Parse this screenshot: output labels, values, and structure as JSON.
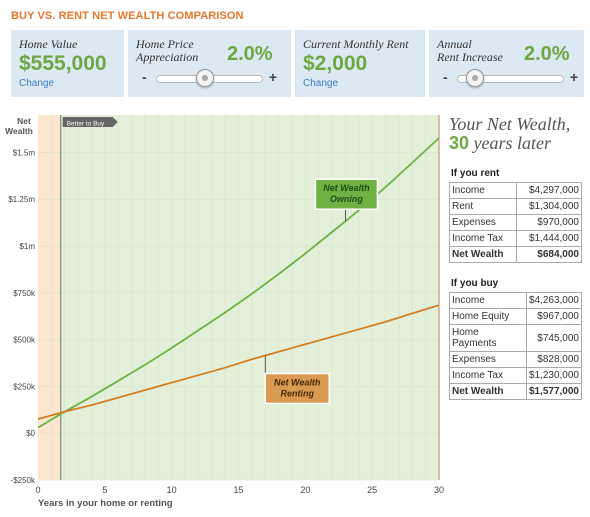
{
  "header": {
    "title": "BUY VS. RENT NET WEALTH COMPARISON"
  },
  "controls": {
    "home_value": {
      "label": "Home Value",
      "value": "$555,000",
      "change": "Change"
    },
    "home_price_appreciation": {
      "label_line1": "Home Price",
      "label_line2": "Appreciation",
      "value": "2.0%",
      "minus": "-",
      "plus": "+",
      "level": 0.45
    },
    "current_rent": {
      "label": "Current Monthly Rent",
      "value": "$2,000",
      "change": "Change"
    },
    "rent_increase": {
      "label_line1": "Annual",
      "label_line2": "Rent Increase",
      "value": "2.0%",
      "minus": "-",
      "plus": "+",
      "level": 0.16
    }
  },
  "chart_data": {
    "type": "line",
    "ylabel": [
      "Net",
      "Wealth"
    ],
    "xlabel": "Years in your home or renting",
    "xlim": [
      0,
      30
    ],
    "ylim": [
      -250000,
      1700000
    ],
    "x_ticks": [
      0,
      5,
      10,
      15,
      20,
      25,
      30
    ],
    "y_ticks": [
      {
        "value": -250000,
        "label": "-$250k"
      },
      {
        "value": 0,
        "label": "$0"
      },
      {
        "value": 250000,
        "label": "$250k"
      },
      {
        "value": 500000,
        "label": "$500k"
      },
      {
        "value": 750000,
        "label": "$750k"
      },
      {
        "value": 1000000,
        "label": "$1m"
      },
      {
        "value": 1250000,
        "label": "$1.25m"
      },
      {
        "value": 1500000,
        "label": "$1.5m"
      }
    ],
    "break_even": {
      "year": 1.7,
      "label": "Better to Buy"
    },
    "x": [
      0,
      2,
      4,
      6,
      8,
      10,
      12,
      14,
      16,
      18,
      20,
      22,
      24,
      26,
      28,
      30
    ],
    "series": [
      {
        "name": "Net Wealth Owning",
        "label_line1": "Net Wealth",
        "label_line2": "Owning",
        "color": "#6fb244",
        "label_at": 23,
        "values": [
          30000,
          115000,
          195000,
          280000,
          365000,
          455000,
          550000,
          645000,
          745000,
          850000,
          960000,
          1075000,
          1190000,
          1315000,
          1445000,
          1577000
        ]
      },
      {
        "name": "Net Wealth Renting",
        "label_line1": "Net Wealth",
        "label_line2": "Renting",
        "color": "#d17f22",
        "label_at": 17,
        "values": [
          75000,
          115000,
          150000,
          190000,
          230000,
          270000,
          310000,
          350000,
          395000,
          435000,
          475000,
          515000,
          555000,
          595000,
          640000,
          684000
        ]
      }
    ],
    "grid": true
  },
  "summary": {
    "heading_line1": "Your Net Wealth,",
    "heading_num": "30",
    "heading_rest": "years later",
    "rent": {
      "title": "If you rent",
      "rows": [
        {
          "label": "Income",
          "value": "$4,297,000"
        },
        {
          "label": "Rent",
          "value": "$1,304,000"
        },
        {
          "label": "Expenses",
          "value": "$970,000"
        },
        {
          "label": "Income Tax",
          "value": "$1,444,000"
        }
      ],
      "total": {
        "label": "Net Wealth",
        "value": "$684,000"
      }
    },
    "buy": {
      "title": "If you buy",
      "rows": [
        {
          "label": "Income",
          "value": "$4,263,000"
        },
        {
          "label": "Home Equity",
          "value": "$967,000"
        },
        {
          "label": "Home Payments",
          "value": "$745,000"
        },
        {
          "label": "Expenses",
          "value": "$828,000"
        },
        {
          "label": "Income Tax",
          "value": "$1,230,000"
        }
      ],
      "total": {
        "label": "Net Wealth",
        "value": "$1,577,000"
      }
    }
  }
}
